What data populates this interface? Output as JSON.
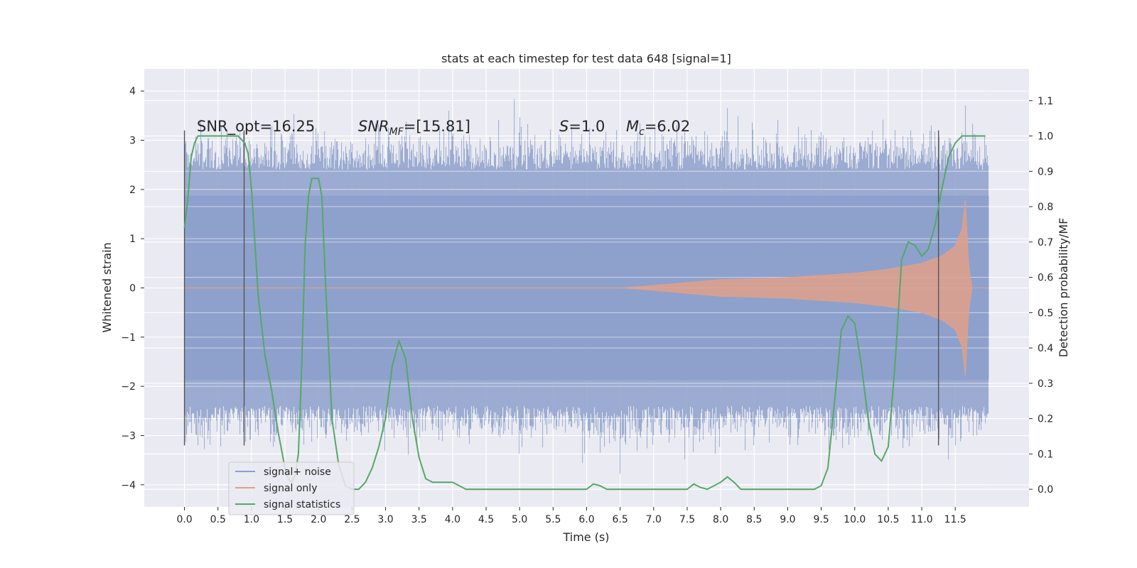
{
  "chart_data": {
    "type": "line",
    "title": "stats at each timestep for test data 648 [signal=1]",
    "xlabel": "Time (s)",
    "ylabel_left": "Whitened strain",
    "ylabel_right": "Detection probability/MF",
    "xlim": [
      -0.6,
      12.6
    ],
    "ylim_left": [
      -4.45,
      4.45
    ],
    "ylim_right": [
      -0.05,
      1.19
    ],
    "xticks": [
      "0.0",
      "0.5",
      "1.0",
      "1.5",
      "2.0",
      "2.5",
      "3.0",
      "3.5",
      "4.0",
      "4.5",
      "5.0",
      "5.5",
      "6.0",
      "6.5",
      "7.0",
      "7.5",
      "8.0",
      "8.5",
      "9.0",
      "9.5",
      "10.0",
      "10.5",
      "11.0",
      "11.5"
    ],
    "yticks_left": [
      "4",
      "3",
      "2",
      "1",
      "0",
      "−1",
      "−2",
      "−3",
      "−4"
    ],
    "yticks_right": [
      "1.1",
      "1.0",
      "0.9",
      "0.8",
      "0.7",
      "0.6",
      "0.5",
      "0.4",
      "0.3",
      "0.2",
      "0.1",
      "0.0"
    ],
    "grid": true,
    "annotations": {
      "snr_opt": "SNR_opt=16.25",
      "snr_mf_main": "SNR",
      "snr_mf_sub": "MF",
      "snr_mf_value": "=[15.81]",
      "s_main": "S",
      "s_value": "=1.0",
      "mc_main": "M",
      "mc_sub": "c",
      "mc_value": "=6.02"
    },
    "legend": {
      "position": "lower-left",
      "entries": [
        "signal+ noise",
        "signal only",
        "signal statistics"
      ]
    },
    "vertical_markers_x": [
      0.0,
      0.89,
      11.25
    ],
    "series": [
      {
        "name": "signal+ noise",
        "axis": "left",
        "color": "#8da0cb",
        "description_kind": "noise",
        "x_range": [
          0.0,
          12.0
        ],
        "envelope": [
          2.4,
          4.0
        ]
      },
      {
        "name": "signal only",
        "axis": "left",
        "color": "#e0a08a",
        "description_kind": "chirp",
        "chirp_amplitude": [
          [
            6.5,
            0.0
          ],
          [
            7.0,
            0.05
          ],
          [
            8.0,
            0.17
          ],
          [
            9.0,
            0.21
          ],
          [
            10.0,
            0.3
          ],
          [
            10.5,
            0.38
          ],
          [
            11.0,
            0.5
          ],
          [
            11.3,
            0.65
          ],
          [
            11.5,
            0.85
          ],
          [
            11.6,
            1.2
          ],
          [
            11.65,
            1.8
          ],
          [
            11.7,
            0.5
          ],
          [
            11.75,
            0.0
          ]
        ]
      },
      {
        "name": "signal statistics",
        "axis": "right",
        "color": "#55a868",
        "x": [
          0.0,
          0.05,
          0.1,
          0.15,
          0.2,
          0.3,
          0.5,
          0.7,
          0.8,
          0.85,
          0.9,
          0.95,
          1.0,
          1.05,
          1.1,
          1.2,
          1.3,
          1.4,
          1.5,
          1.55,
          1.6,
          1.65,
          1.7,
          1.75,
          1.8,
          1.85,
          1.9,
          2.0,
          2.05,
          2.1,
          2.15,
          2.2,
          2.3,
          2.4,
          2.5,
          2.6,
          2.7,
          2.8,
          2.9,
          3.0,
          3.1,
          3.2,
          3.3,
          3.4,
          3.5,
          3.6,
          3.7,
          3.8,
          4.0,
          4.2,
          5.0,
          5.8,
          6.0,
          6.1,
          6.2,
          6.3,
          7.0,
          7.5,
          7.6,
          7.7,
          7.8,
          8.0,
          8.1,
          8.2,
          8.3,
          8.5,
          9.0,
          9.4,
          9.5,
          9.6,
          9.7,
          9.8,
          9.9,
          10.0,
          10.1,
          10.2,
          10.3,
          10.4,
          10.5,
          10.6,
          10.7,
          10.8,
          10.9,
          11.0,
          11.1,
          11.2,
          11.3,
          11.4,
          11.5,
          11.6,
          11.8,
          11.95
        ],
        "values": [
          0.74,
          0.82,
          0.94,
          0.98,
          1.0,
          1.0,
          1.0,
          1.0,
          1.0,
          0.99,
          0.98,
          0.95,
          0.85,
          0.7,
          0.55,
          0.38,
          0.28,
          0.16,
          0.06,
          0.03,
          0.02,
          0.04,
          0.1,
          0.35,
          0.69,
          0.83,
          0.88,
          0.88,
          0.83,
          0.6,
          0.4,
          0.2,
          0.07,
          0.01,
          0.0,
          0.0,
          0.02,
          0.06,
          0.12,
          0.2,
          0.35,
          0.42,
          0.37,
          0.2,
          0.09,
          0.03,
          0.02,
          0.02,
          0.02,
          0.0,
          0.0,
          0.0,
          0.0,
          0.015,
          0.01,
          0.0,
          0.0,
          0.0,
          0.015,
          0.005,
          0.0,
          0.02,
          0.035,
          0.02,
          0.0,
          0.0,
          0.0,
          0.0,
          0.01,
          0.06,
          0.25,
          0.45,
          0.49,
          0.47,
          0.35,
          0.2,
          0.1,
          0.08,
          0.12,
          0.35,
          0.65,
          0.7,
          0.69,
          0.66,
          0.68,
          0.75,
          0.85,
          0.94,
          0.98,
          1.0,
          1.0,
          1.0
        ]
      }
    ]
  }
}
